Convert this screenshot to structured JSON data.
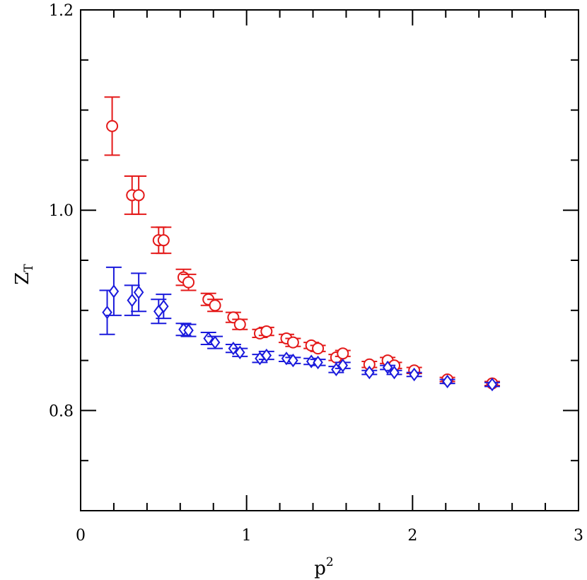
{
  "chart_data": {
    "type": "scatter",
    "title": "",
    "xlabel": {
      "base": "p",
      "superscript": "2"
    },
    "ylabel": {
      "base": "Z",
      "subscript": "T"
    },
    "xlim": [
      0,
      3
    ],
    "ylim": [
      0.7,
      1.2
    ],
    "x_major_ticks": [
      0,
      1,
      2,
      3
    ],
    "x_tick_labels": [
      "0",
      "1",
      "2",
      "3"
    ],
    "x_minor_step": 0.2,
    "y_major_ticks": [
      0.8,
      1.0,
      1.2
    ],
    "y_tick_labels": [
      "0.8",
      "1.0",
      "1.2"
    ],
    "y_minor_step": 0.05,
    "grid": false,
    "legend": "none",
    "series": [
      {
        "marker": "circle",
        "color": "#e41a1a",
        "points": [
          {
            "x": 0.19,
            "y": 1.084,
            "err": 0.029
          },
          {
            "x": 0.31,
            "y": 1.015,
            "err": 0.019
          },
          {
            "x": 0.35,
            "y": 1.015,
            "err": 0.019
          },
          {
            "x": 0.47,
            "y": 0.97,
            "err": 0.013
          },
          {
            "x": 0.5,
            "y": 0.97,
            "err": 0.013
          },
          {
            "x": 0.62,
            "y": 0.933,
            "err": 0.008
          },
          {
            "x": 0.65,
            "y": 0.928,
            "err": 0.008
          },
          {
            "x": 0.77,
            "y": 0.911,
            "err": 0.006
          },
          {
            "x": 0.81,
            "y": 0.905,
            "err": 0.006
          },
          {
            "x": 0.92,
            "y": 0.893,
            "err": 0.005
          },
          {
            "x": 0.96,
            "y": 0.886,
            "err": 0.005
          },
          {
            "x": 1.08,
            "y": 0.877,
            "err": 0.004
          },
          {
            "x": 1.12,
            "y": 0.879,
            "err": 0.004
          },
          {
            "x": 1.24,
            "y": 0.872,
            "err": 0.004
          },
          {
            "x": 1.28,
            "y": 0.868,
            "err": 0.004
          },
          {
            "x": 1.39,
            "y": 0.865,
            "err": 0.003
          },
          {
            "x": 1.43,
            "y": 0.862,
            "err": 0.003
          },
          {
            "x": 1.54,
            "y": 0.853,
            "err": 0.003
          },
          {
            "x": 1.58,
            "y": 0.857,
            "err": 0.003
          },
          {
            "x": 1.74,
            "y": 0.846,
            "err": 0.003
          },
          {
            "x": 1.85,
            "y": 0.85,
            "err": 0.003
          },
          {
            "x": 1.89,
            "y": 0.845,
            "err": 0.003
          },
          {
            "x": 2.01,
            "y": 0.84,
            "err": 0.003
          },
          {
            "x": 2.21,
            "y": 0.831,
            "err": 0.002
          },
          {
            "x": 2.48,
            "y": 0.827,
            "err": 0.002
          }
        ]
      },
      {
        "marker": "diamond",
        "color": "#1a1adc",
        "points": [
          {
            "x": 0.16,
            "y": 0.898,
            "err": 0.022
          },
          {
            "x": 0.2,
            "y": 0.919,
            "err": 0.024
          },
          {
            "x": 0.31,
            "y": 0.91,
            "err": 0.015
          },
          {
            "x": 0.35,
            "y": 0.918,
            "err": 0.019
          },
          {
            "x": 0.47,
            "y": 0.899,
            "err": 0.012
          },
          {
            "x": 0.5,
            "y": 0.904,
            "err": 0.012
          },
          {
            "x": 0.62,
            "y": 0.881,
            "err": 0.006
          },
          {
            "x": 0.65,
            "y": 0.88,
            "err": 0.006
          },
          {
            "x": 0.77,
            "y": 0.872,
            "err": 0.006
          },
          {
            "x": 0.81,
            "y": 0.868,
            "err": 0.006
          },
          {
            "x": 0.92,
            "y": 0.862,
            "err": 0.004
          },
          {
            "x": 0.96,
            "y": 0.858,
            "err": 0.004
          },
          {
            "x": 1.08,
            "y": 0.852,
            "err": 0.004
          },
          {
            "x": 1.12,
            "y": 0.855,
            "err": 0.004
          },
          {
            "x": 1.24,
            "y": 0.852,
            "err": 0.003
          },
          {
            "x": 1.28,
            "y": 0.85,
            "err": 0.003
          },
          {
            "x": 1.39,
            "y": 0.849,
            "err": 0.003
          },
          {
            "x": 1.43,
            "y": 0.848,
            "err": 0.003
          },
          {
            "x": 1.54,
            "y": 0.841,
            "err": 0.003
          },
          {
            "x": 1.58,
            "y": 0.845,
            "err": 0.003
          },
          {
            "x": 1.74,
            "y": 0.838,
            "err": 0.002
          },
          {
            "x": 1.85,
            "y": 0.843,
            "err": 0.002
          },
          {
            "x": 1.89,
            "y": 0.838,
            "err": 0.002
          },
          {
            "x": 2.01,
            "y": 0.836,
            "err": 0.002
          },
          {
            "x": 2.21,
            "y": 0.829,
            "err": 0.002
          },
          {
            "x": 2.48,
            "y": 0.826,
            "err": 0.002
          }
        ]
      }
    ]
  }
}
